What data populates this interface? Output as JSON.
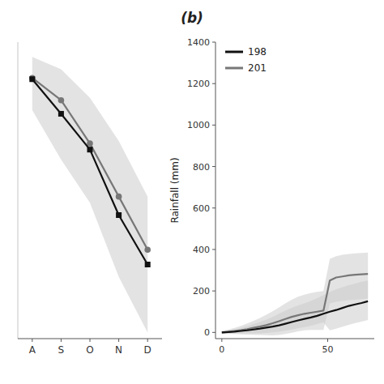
{
  "chart_data": [
    {
      "type": "line",
      "title": "(b)",
      "categories": [
        "A",
        "S",
        "O",
        "N",
        "D"
      ],
      "series": [
        {
          "color": "#111111",
          "marker": "square",
          "values": [
            27.0,
            24.2,
            21.3,
            16.0,
            12.0
          ]
        },
        {
          "color": "#777777",
          "marker": "circle",
          "values": [
            27.1,
            25.3,
            21.8,
            17.5,
            13.2
          ]
        },
        {
          "type": "band",
          "color": "#cccccc",
          "lower": [
            24.5,
            20.5,
            17.0,
            11.0,
            6.5
          ],
          "upper": [
            28.8,
            27.8,
            25.5,
            22.0,
            17.5
          ]
        }
      ],
      "ylim": [
        6,
        30
      ],
      "grid": false,
      "tick_labels": "x"
    },
    {
      "type": "line",
      "ylabel": "Rainfall (mm)",
      "x": [
        0,
        3,
        6,
        9,
        12,
        15,
        18,
        21,
        24,
        27,
        30,
        33,
        36,
        39,
        42,
        45,
        48,
        51,
        54,
        57,
        60,
        63,
        66,
        69
      ],
      "series": [
        {
          "name": "198",
          "color": "#111111",
          "values": [
            0,
            2,
            4,
            7,
            10,
            14,
            18,
            23,
            28,
            34,
            42,
            50,
            58,
            65,
            72,
            80,
            90,
            100,
            108,
            118,
            128,
            135,
            142,
            150
          ]
        },
        {
          "name": "201",
          "color": "#777777",
          "values": [
            0,
            3,
            7,
            11,
            16,
            22,
            28,
            35,
            44,
            54,
            65,
            75,
            83,
            90,
            95,
            100,
            105,
            250,
            265,
            270,
            275,
            278,
            280,
            282
          ]
        },
        {
          "type": "band",
          "color": "#cccccc",
          "lower": [
            -5,
            -5,
            -5,
            -5,
            -5,
            -5,
            -5,
            -3,
            0,
            3,
            8,
            14,
            20,
            26,
            32,
            40,
            48,
            10,
            18,
            28,
            36,
            45,
            52,
            60
          ],
          "upper": [
            5,
            10,
            16,
            22,
            30,
            40,
            50,
            62,
            75,
            90,
            105,
            118,
            130,
            140,
            152,
            165,
            180,
            195,
            208,
            218,
            228,
            236,
            244,
            250
          ]
        },
        {
          "type": "band",
          "color": "#cccccc",
          "lower": [
            -8,
            -7,
            -8,
            -9,
            -10,
            -11,
            -12,
            -13,
            -14,
            -12,
            -8,
            -2,
            5,
            10,
            12,
            12,
            12,
            140,
            148,
            152,
            156,
            158,
            160,
            162
          ],
          "upper": [
            8,
            14,
            22,
            32,
            43,
            56,
            70,
            85,
            102,
            120,
            140,
            158,
            172,
            182,
            190,
            196,
            200,
            355,
            368,
            374,
            378,
            381,
            383,
            385
          ]
        }
      ],
      "xlim": [
        -3,
        72
      ],
      "ylim": [
        -30,
        1400
      ],
      "xticks": [
        0,
        50
      ],
      "yticks": [
        0,
        200,
        400,
        600,
        800,
        1000,
        1200,
        1400
      ],
      "legend": "upper left",
      "grid": false
    }
  ]
}
